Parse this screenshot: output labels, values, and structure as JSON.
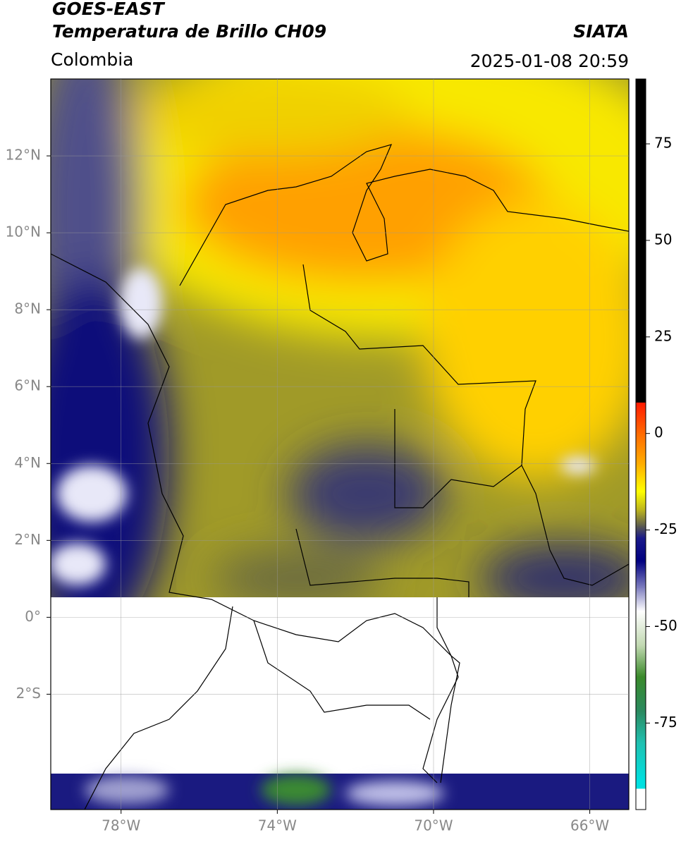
{
  "header": {
    "title": "GOES-EAST",
    "subtitle": "Temperatura de Brillo CH09",
    "source": "SIATA",
    "region": "Colombia",
    "datetime": "2025-01-08 20:59"
  },
  "map": {
    "xlim": [
      -79.8,
      -65
    ],
    "ylim": [
      -5,
      14
    ],
    "xticks": [
      {
        "value": -78,
        "label": "78°W"
      },
      {
        "value": -74,
        "label": "74°W"
      },
      {
        "value": -70,
        "label": "70°W"
      },
      {
        "value": -66,
        "label": "66°W"
      }
    ],
    "yticks": [
      {
        "value": 12,
        "label": "12°N"
      },
      {
        "value": 10,
        "label": "10°N"
      },
      {
        "value": 8,
        "label": "8°N"
      },
      {
        "value": 6,
        "label": "6°N"
      },
      {
        "value": 4,
        "label": "4°N"
      },
      {
        "value": 2,
        "label": "2°N"
      },
      {
        "value": 0,
        "label": "0°"
      },
      {
        "value": -2,
        "label": "2°S"
      }
    ],
    "grid": true
  },
  "colorbar": {
    "lim": [
      -97.4,
      91.8
    ],
    "ticks": [
      75,
      50,
      25,
      0,
      -25,
      -50,
      -75
    ],
    "colormap": [
      {
        "value": 91.8,
        "color": "#000000"
      },
      {
        "value": 8,
        "color": "#000000"
      },
      {
        "value": 8,
        "color": "#ff1a00"
      },
      {
        "value": 0,
        "color": "#ff6a00"
      },
      {
        "value": -8,
        "color": "#ffb000"
      },
      {
        "value": -15,
        "color": "#ffff00"
      },
      {
        "value": -20,
        "color": "#b8b020"
      },
      {
        "value": -24,
        "color": "#5a5a50"
      },
      {
        "value": -27,
        "color": "#1a1a8a"
      },
      {
        "value": -33,
        "color": "#000080"
      },
      {
        "value": -40,
        "color": "#8080c0"
      },
      {
        "value": -46,
        "color": "#ffffff"
      },
      {
        "value": -55,
        "color": "#c0d8b0"
      },
      {
        "value": -63,
        "color": "#3a8a2a"
      },
      {
        "value": -72,
        "color": "#2a8a60"
      },
      {
        "value": -80,
        "color": "#20c0b0"
      },
      {
        "value": -90,
        "color": "#00e0e0"
      },
      {
        "value": -92,
        "color": "#00e0e0"
      },
      {
        "value": -92,
        "color": "#ffffff"
      },
      {
        "value": -97.4,
        "color": "#ffffff"
      }
    ]
  }
}
